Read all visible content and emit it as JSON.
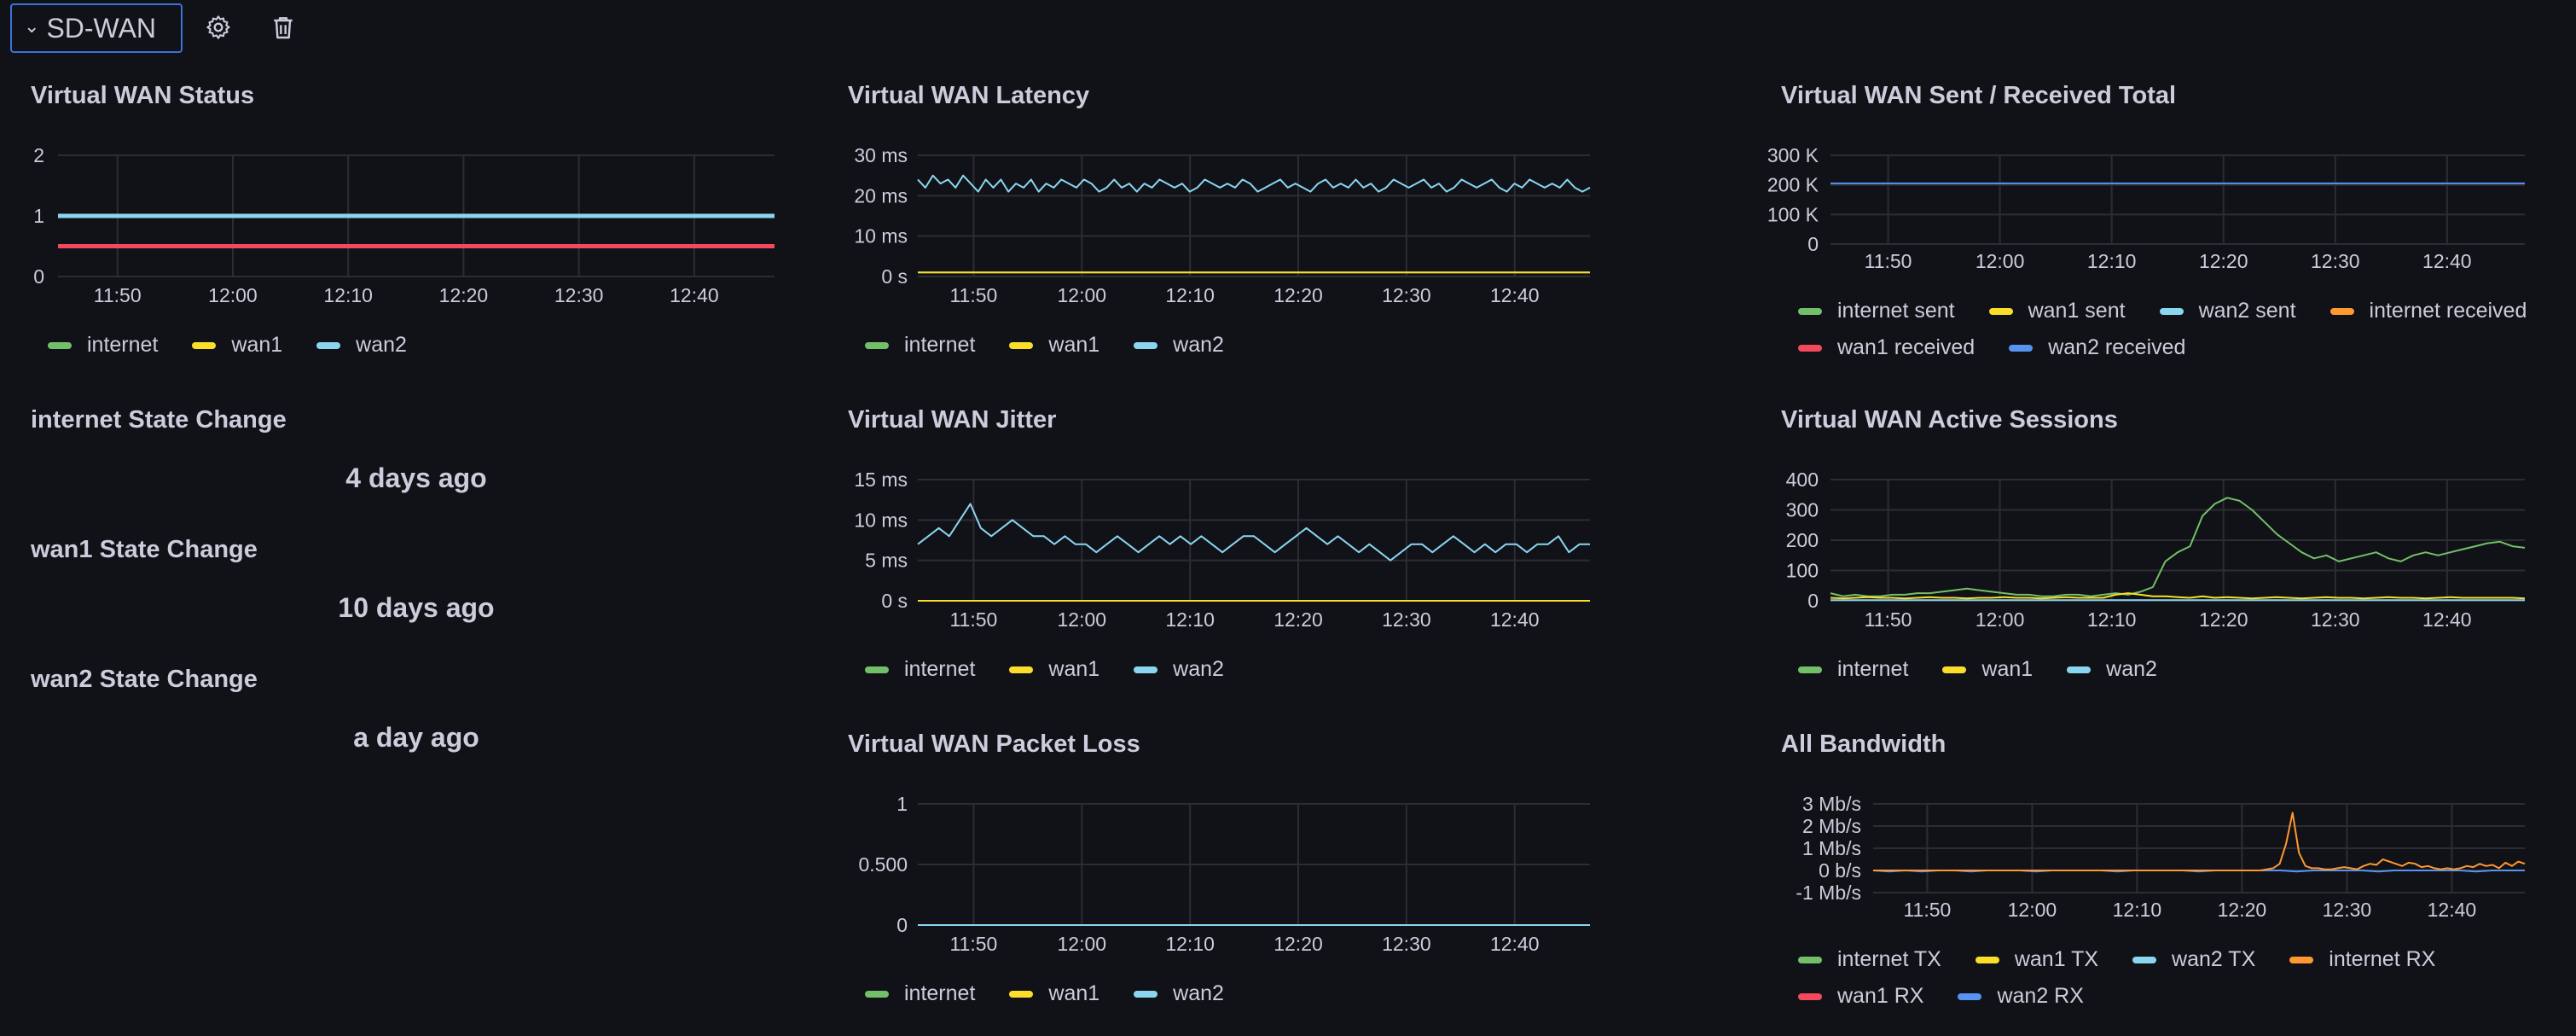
{
  "header": {
    "row_title": "SD-WAN",
    "icons": [
      "gear-icon",
      "trash-icon"
    ]
  },
  "panels": {
    "status": {
      "title": "Virtual WAN Status",
      "legend": [
        "internet",
        "wan1",
        "wan2"
      ]
    },
    "latency": {
      "title": "Virtual WAN Latency",
      "legend": [
        "internet",
        "wan1",
        "wan2"
      ]
    },
    "sent_received": {
      "title": "Virtual WAN Sent / Received Total",
      "legend": [
        "internet sent",
        "wan1 sent",
        "wan2 sent",
        "internet received",
        "wan1 received",
        "wan2 received"
      ]
    },
    "internet_state": {
      "title": "internet State Change",
      "value": "4 days ago"
    },
    "wan1_state": {
      "title": "wan1 State Change",
      "value": "10 days ago"
    },
    "wan2_state": {
      "title": "wan2 State Change",
      "value": "a day ago"
    },
    "jitter": {
      "title": "Virtual WAN Jitter",
      "legend": [
        "internet",
        "wan1",
        "wan2"
      ]
    },
    "sessions": {
      "title": "Virtual WAN Active Sessions",
      "legend": [
        "internet",
        "wan1",
        "wan2"
      ]
    },
    "packet_loss": {
      "title": "Virtual WAN Packet Loss",
      "legend": [
        "internet",
        "wan1",
        "wan2"
      ]
    },
    "bandwidth": {
      "title": "All Bandwidth",
      "legend": [
        "internet TX",
        "wan1 TX",
        "wan2 TX",
        "internet RX",
        "wan1 RX",
        "wan2 RX"
      ]
    }
  },
  "colors": {
    "green": "#73bf69",
    "yellow": "#fade2a",
    "blue": "#8ab8ff",
    "cyan": "#8ad6f0",
    "orange": "#ff9830",
    "red": "#f2495c",
    "darkblue": "#5794f2",
    "grid": "#2c2d33"
  },
  "chart_data": [
    {
      "id": "status",
      "type": "line",
      "x_ticks": [
        "11:50",
        "12:00",
        "12:10",
        "12:20",
        "12:30",
        "12:40"
      ],
      "y_ticks": [
        "2",
        "1",
        "0"
      ],
      "ylim": [
        0,
        2
      ],
      "series": [
        {
          "name": "internet",
          "color": "#73bf69",
          "values": [
            1,
            1
          ]
        },
        {
          "name": "wan1",
          "color": "#f2495c",
          "values": [
            0.5,
            0.5
          ]
        },
        {
          "name": "wan2",
          "color": "#8ad6f0",
          "values": [
            1,
            1
          ]
        }
      ]
    },
    {
      "id": "latency",
      "type": "line",
      "x_ticks": [
        "11:50",
        "12:00",
        "12:10",
        "12:20",
        "12:30",
        "12:40"
      ],
      "y_ticks": [
        "30 ms",
        "20 ms",
        "10 ms",
        "0 s"
      ],
      "ylim": [
        0,
        30
      ],
      "series": [
        {
          "name": "internet",
          "color": "#73bf69",
          "values": [
            1,
            1,
            1,
            1,
            1,
            1,
            1,
            1,
            1,
            1,
            1,
            1
          ]
        },
        {
          "name": "wan1",
          "color": "#fade2a",
          "values": [
            1,
            1,
            1,
            1,
            1,
            1,
            1,
            1,
            1,
            1,
            1,
            1
          ]
        },
        {
          "name": "wan2",
          "color": "#8ad6f0",
          "values": [
            24,
            22,
            25,
            23,
            24,
            22,
            25,
            23,
            21,
            24,
            22,
            24,
            21,
            23,
            22,
            24,
            21,
            23,
            22,
            24,
            23,
            22,
            24,
            23,
            21,
            22,
            24,
            22,
            23,
            21,
            23,
            22,
            24,
            23,
            22,
            23,
            21,
            22,
            24,
            23,
            22,
            23,
            22,
            24,
            23,
            21,
            22,
            23,
            24,
            22,
            23,
            22,
            21,
            23,
            24,
            22,
            23,
            22,
            24,
            22,
            23,
            21,
            22,
            24,
            23,
            22,
            23,
            24,
            22,
            23,
            21,
            22,
            24,
            23,
            22,
            23,
            24,
            22,
            21,
            23,
            22,
            24,
            23,
            22,
            23,
            22,
            24,
            22,
            21,
            22
          ]
        }
      ]
    },
    {
      "id": "sent_received",
      "type": "line",
      "x_ticks": [
        "11:50",
        "12:00",
        "12:10",
        "12:20",
        "12:30",
        "12:40"
      ],
      "y_ticks": [
        "300 K",
        "200 K",
        "100 K",
        "0"
      ],
      "ylim": [
        0,
        300000
      ],
      "series": [
        {
          "name": "wan2 received",
          "color": "#5794f2",
          "values": [
            205000,
            205000
          ]
        }
      ]
    },
    {
      "id": "jitter",
      "type": "line",
      "x_ticks": [
        "11:50",
        "12:00",
        "12:10",
        "12:20",
        "12:30",
        "12:40"
      ],
      "y_ticks": [
        "15 ms",
        "10 ms",
        "5 ms",
        "0 s"
      ],
      "ylim": [
        0,
        15
      ],
      "series": [
        {
          "name": "wan1",
          "color": "#fade2a",
          "values": [
            0,
            0
          ]
        },
        {
          "name": "wan2",
          "color": "#8ad6f0",
          "values": [
            7,
            8,
            9,
            8,
            10,
            12,
            9,
            8,
            9,
            10,
            9,
            8,
            8,
            7,
            8,
            7,
            7,
            6,
            7,
            8,
            7,
            6,
            7,
            8,
            7,
            8,
            7,
            8,
            7,
            6,
            7,
            8,
            8,
            7,
            6,
            7,
            8,
            9,
            8,
            7,
            8,
            7,
            6,
            7,
            6,
            5,
            6,
            7,
            7,
            6,
            7,
            8,
            7,
            6,
            7,
            6,
            7,
            7,
            6,
            7,
            7,
            8,
            6,
            7,
            7
          ]
        }
      ]
    },
    {
      "id": "sessions",
      "type": "line",
      "x_ticks": [
        "11:50",
        "12:00",
        "12:10",
        "12:20",
        "12:30",
        "12:40"
      ],
      "y_ticks": [
        "400",
        "300",
        "200",
        "100",
        "0"
      ],
      "ylim": [
        0,
        400
      ],
      "series": [
        {
          "name": "internet",
          "color": "#73bf69",
          "values": [
            25,
            15,
            20,
            15,
            15,
            20,
            20,
            25,
            25,
            30,
            35,
            40,
            35,
            30,
            25,
            20,
            20,
            15,
            15,
            20,
            20,
            15,
            20,
            25,
            20,
            30,
            45,
            130,
            160,
            180,
            280,
            320,
            340,
            330,
            300,
            260,
            220,
            190,
            160,
            140,
            150,
            130,
            140,
            150,
            160,
            140,
            130,
            150,
            160,
            150,
            160,
            170,
            180,
            190,
            195,
            180,
            175
          ]
        },
        {
          "name": "wan1",
          "color": "#fade2a",
          "values": [
            10,
            8,
            10,
            12,
            10,
            10,
            8,
            10,
            12,
            10,
            10,
            8,
            10,
            10,
            12,
            10,
            10,
            8,
            10,
            12,
            10,
            10,
            10,
            20,
            25,
            20,
            15,
            15,
            12,
            10,
            15,
            10,
            12,
            10,
            8,
            10,
            12,
            10,
            8,
            10,
            12,
            10,
            10,
            8,
            10,
            12,
            10,
            10,
            8,
            10,
            12,
            10,
            10,
            10,
            10,
            10,
            8
          ]
        },
        {
          "name": "wan2",
          "color": "#8ad6f0",
          "values": [
            2,
            2
          ]
        }
      ]
    },
    {
      "id": "packet_loss",
      "type": "line",
      "x_ticks": [
        "11:50",
        "12:00",
        "12:10",
        "12:20",
        "12:30",
        "12:40"
      ],
      "y_ticks": [
        "1",
        "0.500",
        "0"
      ],
      "ylim": [
        0,
        1
      ],
      "series": [
        {
          "name": "wan2",
          "color": "#8ad6f0",
          "values": [
            0,
            0
          ]
        }
      ]
    },
    {
      "id": "bandwidth",
      "type": "line",
      "x_ticks": [
        "11:50",
        "12:00",
        "12:10",
        "12:20",
        "12:30",
        "12:40"
      ],
      "y_ticks": [
        "3 Mb/s",
        "2 Mb/s",
        "1 Mb/s",
        "0 b/s",
        "-1 Mb/s"
      ],
      "ylim": [
        -1,
        3
      ],
      "series": [
        {
          "name": "wan2 RX",
          "color": "#5794f2",
          "values": [
            0,
            -0.05,
            0,
            -0.05,
            0,
            0,
            -0.05,
            0,
            0,
            0,
            -0.05,
            0,
            0,
            0,
            0,
            -0.05,
            0,
            0,
            0,
            0,
            -0.05,
            0,
            0,
            0,
            0,
            0,
            -0.05,
            0,
            0,
            0,
            0,
            -0.05,
            0,
            0,
            0,
            0,
            0,
            -0.05,
            0,
            0,
            0
          ]
        },
        {
          "name": "internet RX",
          "color": "#ff9830",
          "values": [
            0,
            0,
            0,
            0,
            0,
            0,
            0,
            0,
            0,
            0,
            0,
            0,
            0,
            0,
            0,
            0,
            0,
            0,
            0,
            0,
            0,
            0,
            0,
            0,
            0,
            0,
            0,
            0,
            0,
            0,
            0,
            0,
            0,
            0,
            0,
            0,
            0,
            0,
            0,
            0,
            0,
            0,
            0,
            0,
            0,
            0,
            0,
            0,
            0,
            0,
            0,
            0,
            0,
            0,
            0,
            0,
            0,
            0,
            0,
            0,
            0,
            0.05,
            0.1,
            0.3,
            1.2,
            2.6,
            0.8,
            0.2,
            0.1,
            0.1,
            0.05,
            0.05,
            0.1,
            0.15,
            0.1,
            0.05,
            0.2,
            0.3,
            0.25,
            0.5,
            0.4,
            0.3,
            0.2,
            0.35,
            0.3,
            0.15,
            0.2,
            0.1,
            0.05,
            0.1,
            0.05,
            0.1,
            0.2,
            0.15,
            0.3,
            0.2,
            0.25,
            0.1,
            0.35,
            0.2,
            0.4,
            0.3
          ]
        }
      ]
    }
  ]
}
